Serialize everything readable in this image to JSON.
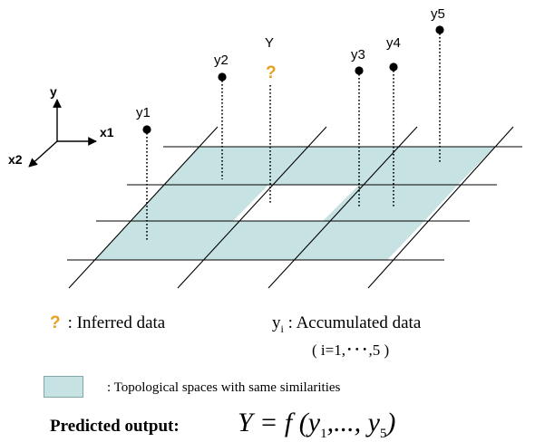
{
  "axes": {
    "y": "y",
    "x1": "x1",
    "x2": "x2"
  },
  "points": [
    {
      "label": "y1",
      "known": true
    },
    {
      "label": "y2",
      "known": true
    },
    {
      "label": "Y",
      "known": false,
      "marker": "?"
    },
    {
      "label": "y3",
      "known": true
    },
    {
      "label": "y4",
      "known": true
    },
    {
      "label": "y5",
      "known": true
    }
  ],
  "colors": {
    "cell_fill": "#c6e2e2",
    "inferred_mark": "#e8a020",
    "line": "#000000"
  },
  "legend": {
    "inferred_symbol": "?",
    "inferred_text": ": Inferred data",
    "accumulated_var": "y",
    "accumulated_sub": "i",
    "accumulated_text": ": Accumulated data",
    "accumulated_range": "( i=1,･･･,5 )",
    "topological_text": ": Topological spaces with same similarities"
  },
  "prediction": {
    "label": "Predicted output:",
    "formula_lhs": "Y = f (",
    "formula_v1": "y",
    "formula_s1": "1",
    "formula_mid": ",..., ",
    "formula_v2": "y",
    "formula_s2": "5",
    "formula_rhs": ")"
  }
}
